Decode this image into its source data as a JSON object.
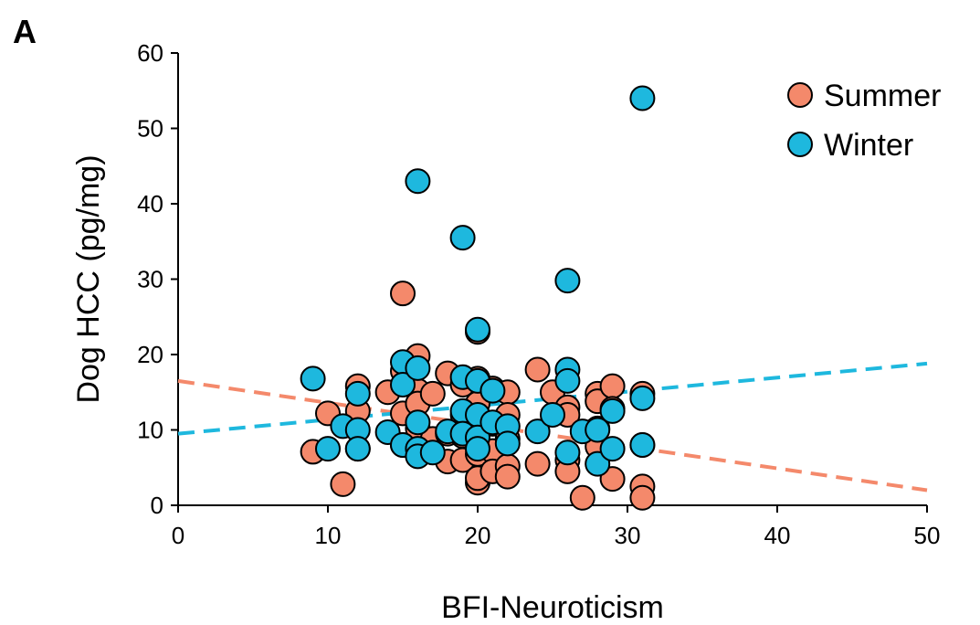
{
  "panel_label": "A",
  "chart_data": {
    "type": "scatter",
    "title": "",
    "xlabel": "BFI-Neuroticism",
    "ylabel": "Dog HCC (pg/mg)",
    "xlim": [
      0,
      50
    ],
    "ylim": [
      0,
      60
    ],
    "xticks": [
      0,
      10,
      20,
      30,
      40,
      50
    ],
    "yticks": [
      0,
      10,
      20,
      30,
      40,
      50,
      60
    ],
    "legend_position": "top-right",
    "grid": false,
    "series": [
      {
        "name": "Summer",
        "color": "#F4896B",
        "trend": [
          [
            0,
            16.5
          ],
          [
            50,
            2.0
          ]
        ],
        "points": [
          [
            9,
            7.1
          ],
          [
            10,
            12.2
          ],
          [
            11,
            2.8
          ],
          [
            12,
            15.8
          ],
          [
            12,
            12.5
          ],
          [
            12,
            7.5
          ],
          [
            14,
            15.0
          ],
          [
            15,
            28.1
          ],
          [
            15,
            17.8
          ],
          [
            15,
            12.2
          ],
          [
            15,
            8.0
          ],
          [
            16,
            19.8
          ],
          [
            16,
            15.2
          ],
          [
            16,
            13.5
          ],
          [
            16,
            10.2
          ],
          [
            16,
            7.0
          ],
          [
            17,
            14.8
          ],
          [
            17,
            8.8
          ],
          [
            18,
            17.5
          ],
          [
            18,
            5.8
          ],
          [
            18,
            9.5
          ],
          [
            19,
            16.0
          ],
          [
            19,
            12.0
          ],
          [
            19,
            9.2
          ],
          [
            19,
            6.0
          ],
          [
            20,
            23.0
          ],
          [
            20,
            16.8
          ],
          [
            20,
            13.5
          ],
          [
            20,
            9.8
          ],
          [
            20,
            6.8
          ],
          [
            20,
            3.0
          ],
          [
            20,
            3.6
          ],
          [
            21,
            15.5
          ],
          [
            21,
            10.8
          ],
          [
            21,
            7.2
          ],
          [
            21,
            4.5
          ],
          [
            22,
            15.0
          ],
          [
            22,
            12.0
          ],
          [
            22,
            8.8
          ],
          [
            22,
            5.2
          ],
          [
            22,
            3.8
          ],
          [
            24,
            18.0
          ],
          [
            24,
            5.5
          ],
          [
            25,
            15.0
          ],
          [
            26,
            13.0
          ],
          [
            26,
            12.0
          ],
          [
            26,
            6.0
          ],
          [
            26,
            4.5
          ],
          [
            27,
            1.0
          ],
          [
            28,
            14.8
          ],
          [
            28,
            13.8
          ],
          [
            28,
            10.2
          ],
          [
            28,
            7.8
          ],
          [
            29,
            15.8
          ],
          [
            29,
            12.8
          ],
          [
            29,
            3.5
          ],
          [
            31,
            14.8
          ],
          [
            31,
            8.0
          ],
          [
            31,
            2.5
          ],
          [
            31,
            1.0
          ]
        ]
      },
      {
        "name": "Winter",
        "color": "#1EB8DE",
        "trend": [
          [
            0,
            9.5
          ],
          [
            50,
            18.8
          ]
        ],
        "points": [
          [
            9,
            16.8
          ],
          [
            10,
            7.5
          ],
          [
            11,
            10.5
          ],
          [
            12,
            14.8
          ],
          [
            12,
            10.0
          ],
          [
            12,
            7.5
          ],
          [
            14,
            9.7
          ],
          [
            15,
            19.0
          ],
          [
            15,
            16.0
          ],
          [
            15,
            8.0
          ],
          [
            16,
            43.0
          ],
          [
            16,
            18.2
          ],
          [
            16,
            11.0
          ],
          [
            16,
            7.5
          ],
          [
            16,
            6.5
          ],
          [
            17,
            7.0
          ],
          [
            18,
            9.8
          ],
          [
            19,
            35.5
          ],
          [
            19,
            17.0
          ],
          [
            19,
            12.5
          ],
          [
            19,
            9.5
          ],
          [
            20,
            23.3
          ],
          [
            20,
            16.5
          ],
          [
            20,
            12.0
          ],
          [
            20,
            9.0
          ],
          [
            20,
            7.5
          ],
          [
            21,
            15.2
          ],
          [
            21,
            11.0
          ],
          [
            22,
            10.5
          ],
          [
            22,
            8.2
          ],
          [
            24,
            9.8
          ],
          [
            25,
            12.0
          ],
          [
            26,
            29.8
          ],
          [
            26,
            18.0
          ],
          [
            26,
            16.5
          ],
          [
            26,
            7.0
          ],
          [
            27,
            9.8
          ],
          [
            28,
            10.0
          ],
          [
            28,
            5.5
          ],
          [
            29,
            12.5
          ],
          [
            29,
            7.5
          ],
          [
            31,
            54.0
          ],
          [
            31,
            14.2
          ],
          [
            31,
            8.0
          ]
        ]
      }
    ]
  }
}
